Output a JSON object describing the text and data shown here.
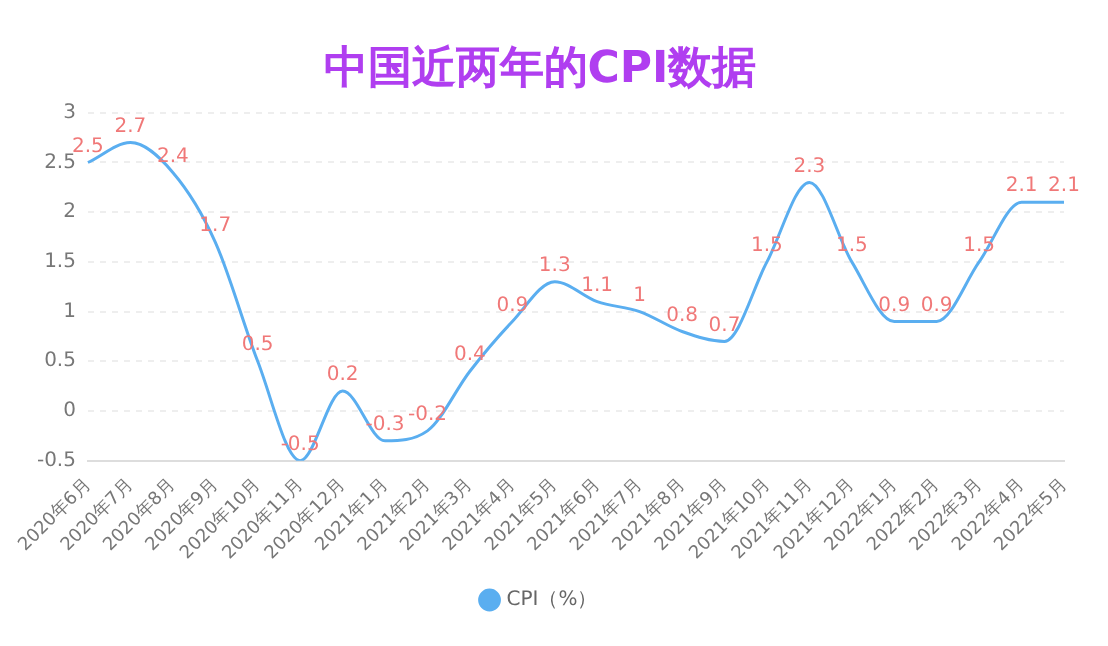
{
  "chart_data": {
    "type": "line",
    "title": "中国近两年的CPI数据",
    "categories": [
      "2020年6月",
      "2020年7月",
      "2020年8月",
      "2020年9月",
      "2020年10月",
      "2020年11月",
      "2020年12月",
      "2021年1月",
      "2021年2月",
      "2021年3月",
      "2021年4月",
      "2021年5月",
      "2021年6月",
      "2021年7月",
      "2021年8月",
      "2021年9月",
      "2021年10月",
      "2021年11月",
      "2021年12月",
      "2022年1月",
      "2022年2月",
      "2022年3月",
      "2022年4月",
      "2022年5月"
    ],
    "series": [
      {
        "name": "CPI（%）",
        "color": "#5aaef0",
        "values": [
          2.5,
          2.7,
          2.4,
          1.7,
          0.5,
          -0.5,
          0.2,
          -0.3,
          -0.2,
          0.4,
          0.9,
          1.3,
          1.1,
          1,
          0.8,
          0.7,
          1.5,
          2.3,
          1.5,
          0.9,
          0.9,
          1.5,
          2.1,
          2.1
        ]
      }
    ],
    "ylim": [
      -0.5,
      3
    ],
    "yticks": [
      -0.5,
      0,
      0.5,
      1,
      1.5,
      2,
      2.5,
      3
    ],
    "grid": "y",
    "legend": "bottom",
    "marker": "none",
    "data_labels": true
  }
}
